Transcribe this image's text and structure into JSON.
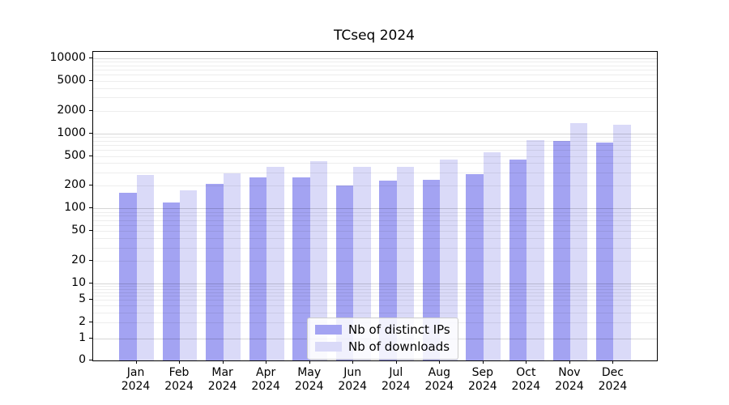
{
  "chart_data": {
    "type": "bar",
    "title": "TCseq 2024",
    "categories": [
      "Jan",
      "Feb",
      "Mar",
      "Apr",
      "May",
      "Jun",
      "Jul",
      "Aug",
      "Sep",
      "Oct",
      "Nov",
      "Dec"
    ],
    "x_sublabel": "2024",
    "series": [
      {
        "name": "Nb of distinct IPs",
        "color": "#a3a3f2",
        "values": [
          160,
          120,
          210,
          260,
          260,
          200,
          237,
          240,
          285,
          447,
          800,
          760
        ]
      },
      {
        "name": "Nb of downloads",
        "color": "#dadaf8",
        "values": [
          280,
          173,
          295,
          360,
          430,
          360,
          360,
          445,
          560,
          810,
          1370,
          1310
        ]
      }
    ],
    "y_scale": "symlog",
    "y_ticks": [
      0,
      1,
      2,
      5,
      10,
      20,
      50,
      100,
      200,
      500,
      1000,
      2000,
      5000,
      10000
    ],
    "y_major_gridlines": [
      1,
      10,
      100,
      1000,
      10000
    ],
    "y_minor_gridline_mantissas": [
      2,
      3,
      4,
      5,
      6,
      7,
      8,
      9
    ],
    "ylim": [
      0,
      12200
    ],
    "grid": "horizontal",
    "legend_position": "lower center",
    "xlabel": "",
    "ylabel": ""
  }
}
